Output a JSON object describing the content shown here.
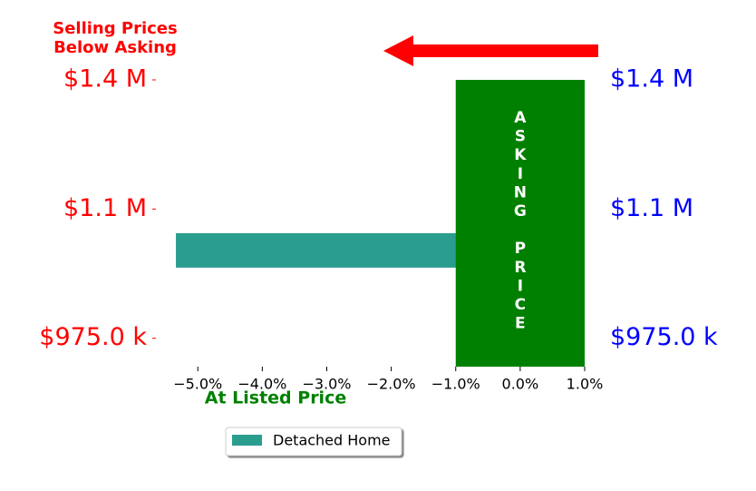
{
  "chart_data": {
    "type": "barh",
    "title": "Selling Prices Below Asking",
    "x_annotation": "At Listed Price",
    "asking_zone": {
      "label": "ASKING PRICE",
      "xlim": [
        -1,
        1
      ],
      "color": "#008000"
    },
    "xlim": [
      -5.65,
      1.0
    ],
    "xticks": [
      {
        "value": -5,
        "label": "−5.0%"
      },
      {
        "value": -4,
        "label": "−4.0%"
      },
      {
        "value": -3,
        "label": "−3.0%"
      },
      {
        "value": -2,
        "label": "−2.0%"
      },
      {
        "value": -1,
        "label": "−1.0%"
      },
      {
        "value": 0,
        "label": "0.0%"
      },
      {
        "value": 1,
        "label": "1.0%"
      }
    ],
    "ylim": [
      -0.22,
      2.0
    ],
    "yticks": [
      {
        "value": 0,
        "label": "$975.0 k"
      },
      {
        "value": 1,
        "label": "$1.1 M"
      },
      {
        "value": 2,
        "label": "$1.4 M"
      }
    ],
    "y2ticks": [
      {
        "value": 0,
        "label": "$975.0 k"
      },
      {
        "value": 1,
        "label": "$1.1 M"
      },
      {
        "value": 2,
        "label": "$1.4 M"
      }
    ],
    "ytick_color": "#ff0000",
    "y2tick_color": "#0000ff",
    "series": [
      {
        "name": "Detached Home",
        "color": "#2a9d8f",
        "values": [
          -5.34
        ],
        "y": [
          0.68
        ]
      }
    ],
    "legend": "below"
  }
}
